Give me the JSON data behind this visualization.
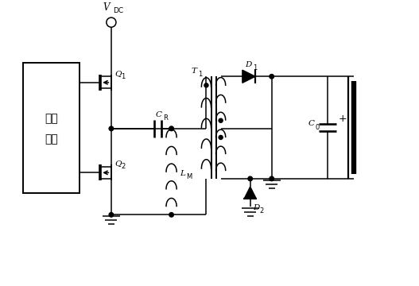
{
  "bg_color": "#ffffff",
  "line_color": "#000000",
  "fig_width": 5.27,
  "fig_height": 3.6,
  "dpi": 100,
  "ctrl_label_1": "控制",
  "ctrl_label_2": "电路",
  "VDC_label": "V",
  "VDC_sub": "DC",
  "Q1_label": "Q",
  "Q1_sub": "1",
  "Q2_label": "Q",
  "Q2_sub": "2",
  "CR_label": "C",
  "CR_sub": "R",
  "LM_label": "L",
  "LM_sub": "M",
  "T1_label": "T",
  "T1_sub": "1",
  "D1_label": "D",
  "D1_sub": "1",
  "D2_label": "D",
  "D2_sub": "2",
  "C0_label": "C",
  "C0_sub": "0"
}
